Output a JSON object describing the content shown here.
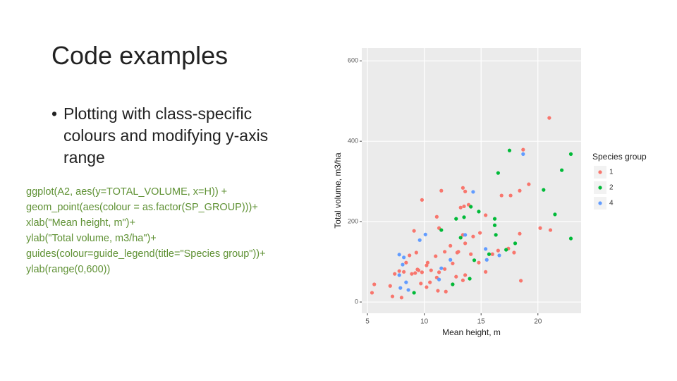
{
  "slide": {
    "title": "Code examples",
    "bullet": "Plotting with class-specific colours and modifying y-axis range",
    "code": [
      "ggplot(A2, aes(y=TOTAL_VOLUME, x=H)) +",
      "geom_point(aes(colour = as.factor(SP_GROUP)))+",
      "xlab(\"Mean height, m\")+",
      "ylab(\"Total volume, m3/ha\")+",
      "guides(colour=guide_legend(title=\"Species group\"))+",
      "ylab(range(0,600))"
    ]
  },
  "chart_data": {
    "type": "scatter",
    "x_label": "Mean height, m",
    "y_label": "Total volume, m3/ha",
    "legend_title": "Species group",
    "xlim": [
      4.5,
      23.8
    ],
    "ylim": [
      -28,
      632
    ],
    "xticks": [
      5,
      10,
      15,
      20
    ],
    "yticks": [
      0,
      200,
      400,
      600
    ],
    "grid": true,
    "legend_position": "right",
    "series": [
      {
        "name": "1",
        "color": "#F8766D",
        "x": [
          21.0,
          18.7,
          19.2,
          18.4,
          16.8,
          17.6,
          20.2,
          21.1,
          18.4,
          18.5,
          13.6,
          13.4,
          11.5,
          9.8,
          9.1,
          11.1,
          11.3,
          13.2,
          13.5,
          13.9,
          15.4,
          14.9,
          14.3,
          13.4,
          13.6,
          12.9,
          12.3,
          11.8,
          11.8,
          11.3,
          10.3,
          10.2,
          9.8,
          9.4,
          9.2,
          8.4,
          8.2,
          7.8,
          7.4,
          7.0,
          5.4,
          5.6,
          7.2,
          8.0,
          10.5,
          11.2,
          11.9,
          12.5,
          12.8,
          13.6,
          14.1,
          14.8,
          15.4,
          16.0,
          16.5,
          17.4,
          17.9,
          9.3,
          8.7,
          11.0,
          13.4,
          12.5,
          11.1,
          8.9,
          9.7,
          10.2,
          9.5,
          10.6,
          13.0
        ],
        "values": [
          458,
          379,
          293,
          277,
          265,
          265,
          184,
          179,
          170,
          53,
          275,
          284,
          277,
          254,
          177,
          212,
          184,
          235,
          238,
          242,
          216,
          172,
          163,
          167,
          146,
          123,
          140,
          125,
          82,
          74,
          98,
          91,
          74,
          81,
          72,
          98,
          75,
          77,
          70,
          40,
          23,
          44,
          14,
          11,
          49,
          28,
          26,
          44,
          63,
          67,
          119,
          98,
          75,
          119,
          128,
          133,
          123,
          123,
          116,
          114,
          54,
          96,
          61,
          70,
          46,
          37,
          79,
          79,
          125
        ]
      },
      {
        "name": "2",
        "color": "#00BA38",
        "x": [
          17.5,
          22.9,
          22.1,
          16.5,
          20.5,
          21.5,
          22.9,
          14.1,
          14.8,
          16.2,
          16.2,
          12.8,
          13.5,
          11.5,
          13.2,
          15.7,
          17.2,
          18.0,
          12.5,
          14.0,
          14.4,
          9.1,
          16.3
        ],
        "values": [
          377,
          368,
          328,
          321,
          279,
          218,
          158,
          237,
          225,
          207,
          191,
          207,
          211,
          179,
          160,
          119,
          130,
          146,
          44,
          58,
          104,
          23,
          167
        ]
      },
      {
        "name": "4",
        "color": "#619CFF",
        "x": [
          18.7,
          14.3,
          10.1,
          9.6,
          7.8,
          8.2,
          8.1,
          7.8,
          8.4,
          8.6,
          7.9,
          15.4,
          15.5,
          16.6,
          11.5,
          12.3,
          13.6,
          11.3
        ],
        "values": [
          368,
          274,
          168,
          154,
          118,
          111,
          93,
          67,
          49,
          30,
          35,
          132,
          105,
          116,
          84,
          105,
          167,
          56
        ]
      }
    ]
  }
}
